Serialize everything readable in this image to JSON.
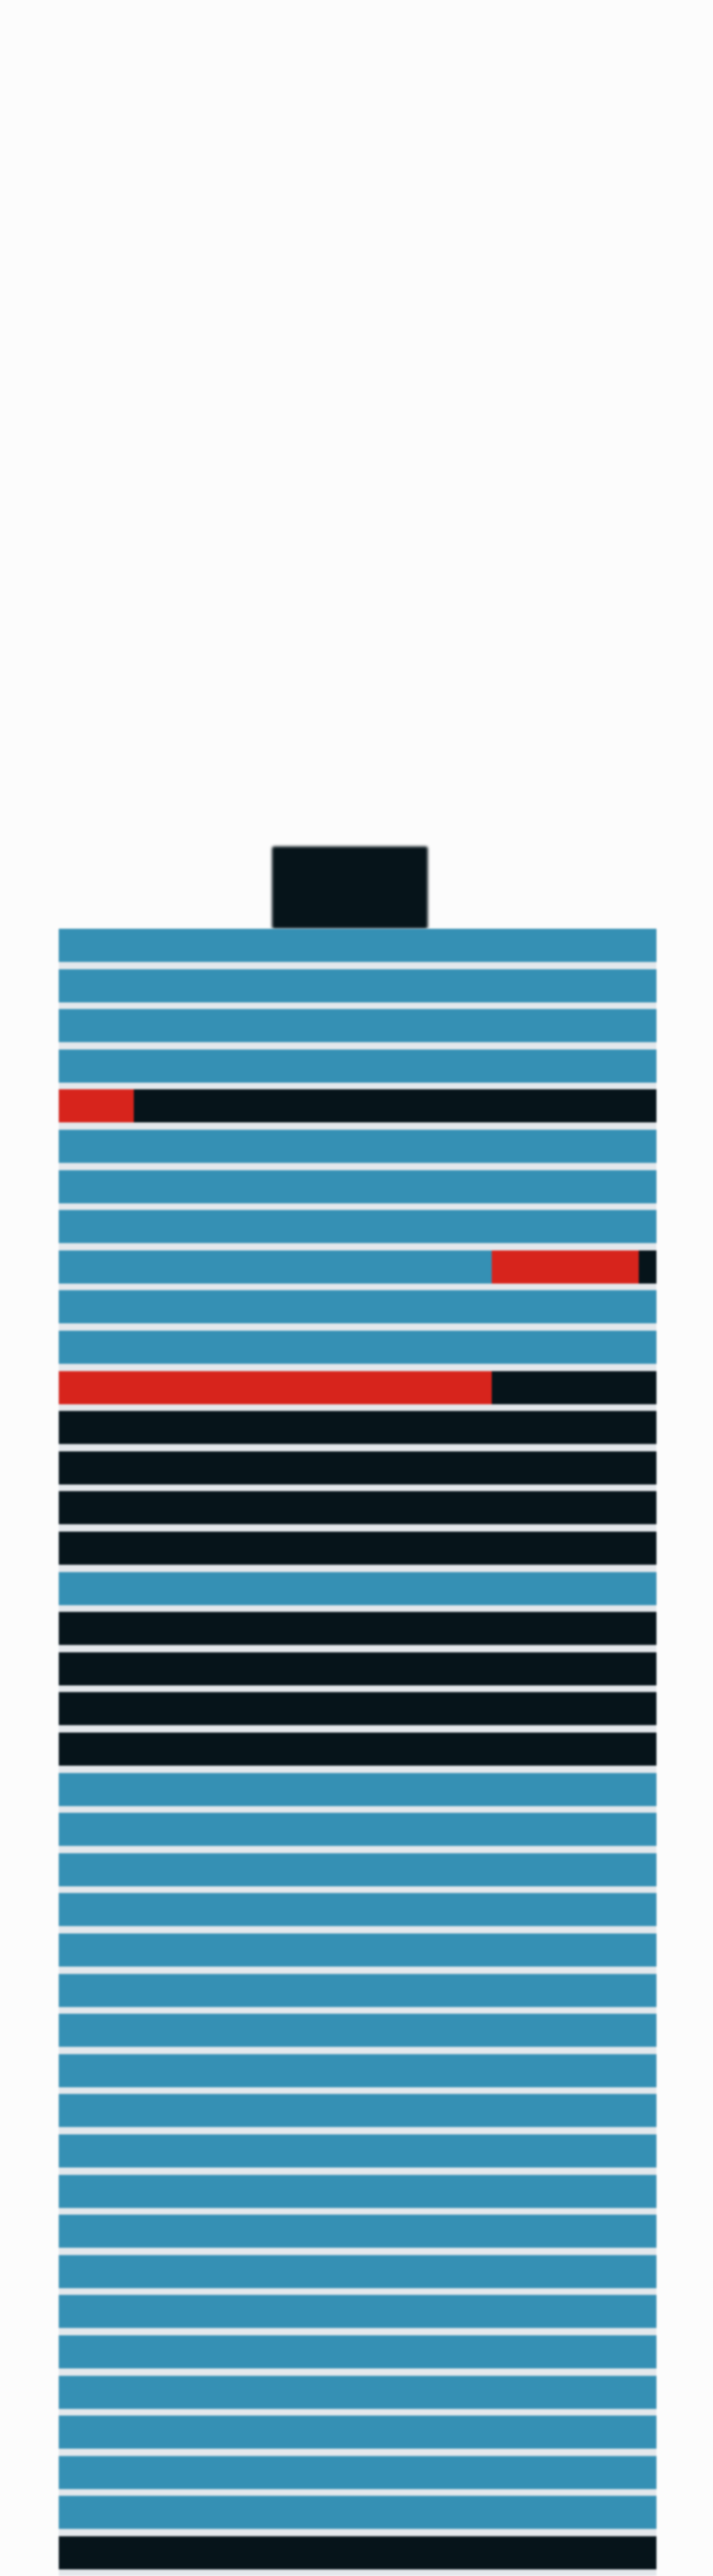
{
  "colors": {
    "background": "#fcfcfc",
    "terminal": "#06141a",
    "separator": "#e4e8ec",
    "blue": "#3590b4",
    "black": "#06141a",
    "red": "#d7241c"
  },
  "terminal_icon": "battery-terminal",
  "bars": [
    {
      "segments": [
        {
          "color": "blue",
          "fraction": 1
        }
      ]
    },
    {
      "segments": [
        {
          "color": "blue",
          "fraction": 1
        }
      ]
    },
    {
      "segments": [
        {
          "color": "blue",
          "fraction": 1
        }
      ]
    },
    {
      "segments": [
        {
          "color": "blue",
          "fraction": 1
        }
      ]
    },
    {
      "segments": [
        {
          "color": "red",
          "fraction": 0.125
        },
        {
          "color": "black",
          "fraction": 0.875
        }
      ]
    },
    {
      "segments": [
        {
          "color": "blue",
          "fraction": 1
        }
      ]
    },
    {
      "segments": [
        {
          "color": "blue",
          "fraction": 1
        }
      ]
    },
    {
      "segments": [
        {
          "color": "blue",
          "fraction": 1
        }
      ]
    },
    {
      "segments": [
        {
          "color": "blue",
          "fraction": 0.725
        },
        {
          "color": "red",
          "fraction": 0.245
        },
        {
          "color": "black",
          "fraction": 0.03
        }
      ]
    },
    {
      "segments": [
        {
          "color": "blue",
          "fraction": 1
        }
      ]
    },
    {
      "segments": [
        {
          "color": "blue",
          "fraction": 1
        }
      ]
    },
    {
      "segments": [
        {
          "color": "red",
          "fraction": 0.725
        },
        {
          "color": "black",
          "fraction": 0.275
        }
      ]
    },
    {
      "segments": [
        {
          "color": "black",
          "fraction": 1
        }
      ]
    },
    {
      "segments": [
        {
          "color": "black",
          "fraction": 1
        }
      ]
    },
    {
      "segments": [
        {
          "color": "black",
          "fraction": 1
        }
      ]
    },
    {
      "segments": [
        {
          "color": "black",
          "fraction": 1
        }
      ]
    },
    {
      "segments": [
        {
          "color": "blue",
          "fraction": 1
        }
      ]
    },
    {
      "segments": [
        {
          "color": "black",
          "fraction": 1
        }
      ]
    },
    {
      "segments": [
        {
          "color": "black",
          "fraction": 1
        }
      ]
    },
    {
      "segments": [
        {
          "color": "black",
          "fraction": 1
        }
      ]
    },
    {
      "segments": [
        {
          "color": "black",
          "fraction": 1
        }
      ]
    },
    {
      "segments": [
        {
          "color": "blue",
          "fraction": 1
        }
      ]
    },
    {
      "segments": [
        {
          "color": "blue",
          "fraction": 1
        }
      ]
    },
    {
      "segments": [
        {
          "color": "blue",
          "fraction": 1
        }
      ]
    },
    {
      "segments": [
        {
          "color": "blue",
          "fraction": 1
        }
      ]
    },
    {
      "segments": [
        {
          "color": "blue",
          "fraction": 1
        }
      ]
    },
    {
      "segments": [
        {
          "color": "blue",
          "fraction": 1
        }
      ]
    },
    {
      "segments": [
        {
          "color": "blue",
          "fraction": 1
        }
      ]
    },
    {
      "segments": [
        {
          "color": "blue",
          "fraction": 1
        }
      ]
    },
    {
      "segments": [
        {
          "color": "blue",
          "fraction": 1
        }
      ]
    },
    {
      "segments": [
        {
          "color": "blue",
          "fraction": 1
        }
      ]
    },
    {
      "segments": [
        {
          "color": "blue",
          "fraction": 1
        }
      ]
    },
    {
      "segments": [
        {
          "color": "blue",
          "fraction": 1
        }
      ]
    },
    {
      "segments": [
        {
          "color": "blue",
          "fraction": 1
        }
      ]
    },
    {
      "segments": [
        {
          "color": "blue",
          "fraction": 1
        }
      ]
    },
    {
      "segments": [
        {
          "color": "blue",
          "fraction": 1
        }
      ]
    },
    {
      "segments": [
        {
          "color": "blue",
          "fraction": 1
        }
      ]
    },
    {
      "segments": [
        {
          "color": "blue",
          "fraction": 1
        }
      ]
    },
    {
      "segments": [
        {
          "color": "blue",
          "fraction": 1
        }
      ]
    },
    {
      "segments": [
        {
          "color": "blue",
          "fraction": 1
        }
      ]
    },
    {
      "segments": [
        {
          "color": "black",
          "fraction": 1
        }
      ]
    }
  ]
}
